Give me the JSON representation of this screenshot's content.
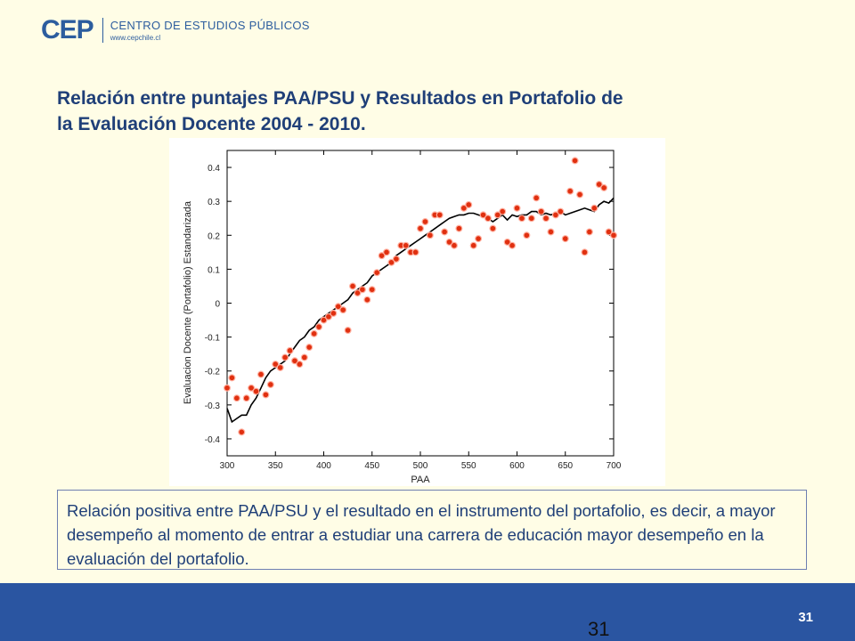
{
  "header": {
    "logo_mark": "CEP",
    "org_name": "CENTRO DE ESTUDIOS PÚBLICOS",
    "org_url": "www.cepchile.cl",
    "brand_color": "#2c5d9e"
  },
  "slide": {
    "title_line1": "Relación entre puntajes PAA/PSU y Resultados en Portafolio de",
    "title_line2": "la Evaluación Docente 2004 - 2010.",
    "summary": "Relación positiva entre PAA/PSU y el resultado en el instrumento del portafolio, es decir, a mayor desempeño al momento de entrar a estudiar una carrera de educación mayor desempeño en la evaluación del portafolio.",
    "title_color": "#1f3f78"
  },
  "footer": {
    "page_number": "31",
    "page_number_center": "31",
    "color": "#2a55a1"
  },
  "chart_data": {
    "type": "scatter",
    "xlabel": "PAA",
    "ylabel": "Evaluacion Docente (Portafolio) Estandarizada",
    "xlim": [
      300,
      700
    ],
    "ylim": [
      -0.45,
      0.45
    ],
    "xticks": [
      300,
      350,
      400,
      450,
      500,
      550,
      600,
      650,
      700
    ],
    "yticks": [
      0.4,
      0.3,
      0.2,
      0.1,
      0,
      -0.1,
      -0.2,
      -0.3,
      -0.4
    ],
    "ytick_labels": [
      "0.4",
      "0.3",
      "0.2",
      "0.1",
      "0",
      "-0.1",
      "-0.2",
      "-0.3",
      "-0.4"
    ],
    "marker_color": "#e03010",
    "line_color": "#000000",
    "series": [
      {
        "kind": "points",
        "x": [
          300,
          305,
          310,
          315,
          320,
          325,
          330,
          335,
          340,
          345,
          350,
          355,
          360,
          365,
          370,
          375,
          380,
          385,
          390,
          395,
          400,
          405,
          410,
          415,
          420,
          425,
          430,
          435,
          440,
          445,
          450,
          455,
          460,
          465,
          470,
          475,
          480,
          485,
          490,
          495,
          500,
          505,
          510,
          515,
          520,
          525,
          530,
          535,
          540,
          545,
          550,
          555,
          560,
          565,
          570,
          575,
          580,
          585,
          590,
          595,
          600,
          605,
          610,
          615,
          620,
          625,
          630,
          635,
          640,
          645,
          650,
          655,
          660,
          665,
          670,
          675,
          680,
          685,
          690,
          695,
          700
        ],
        "y": [
          -0.25,
          -0.22,
          -0.28,
          -0.38,
          -0.28,
          -0.25,
          -0.26,
          -0.21,
          -0.27,
          -0.24,
          -0.18,
          -0.19,
          -0.16,
          -0.14,
          -0.17,
          -0.18,
          -0.16,
          -0.13,
          -0.09,
          -0.07,
          -0.05,
          -0.04,
          -0.03,
          -0.01,
          -0.02,
          -0.08,
          0.05,
          0.03,
          0.04,
          0.01,
          0.04,
          0.09,
          0.14,
          0.15,
          0.12,
          0.13,
          0.17,
          0.17,
          0.15,
          0.15,
          0.22,
          0.24,
          0.2,
          0.26,
          0.26,
          0.21,
          0.18,
          0.17,
          0.22,
          0.28,
          0.29,
          0.17,
          0.19,
          0.26,
          0.25,
          0.22,
          0.26,
          0.27,
          0.18,
          0.17,
          0.28,
          0.25,
          0.2,
          0.25,
          0.31,
          0.27,
          0.25,
          0.21,
          0.26,
          0.27,
          0.19,
          0.33,
          0.42,
          0.32,
          0.15,
          0.21,
          0.28,
          0.35,
          0.34,
          0.21,
          0.2
        ]
      },
      {
        "kind": "line",
        "x": [
          300,
          305,
          310,
          315,
          320,
          325,
          330,
          335,
          340,
          345,
          350,
          355,
          360,
          365,
          370,
          375,
          380,
          385,
          390,
          395,
          400,
          405,
          410,
          415,
          420,
          425,
          430,
          435,
          440,
          445,
          450,
          455,
          460,
          465,
          470,
          475,
          480,
          485,
          490,
          495,
          500,
          505,
          510,
          515,
          520,
          525,
          530,
          535,
          540,
          545,
          550,
          555,
          560,
          565,
          570,
          575,
          580,
          585,
          590,
          595,
          600,
          605,
          610,
          615,
          620,
          625,
          630,
          635,
          640,
          645,
          650,
          655,
          660,
          665,
          670,
          675,
          680,
          685,
          690,
          695,
          700
        ],
        "y": [
          -0.31,
          -0.35,
          -0.34,
          -0.33,
          -0.33,
          -0.3,
          -0.28,
          -0.25,
          -0.22,
          -0.2,
          -0.19,
          -0.18,
          -0.17,
          -0.15,
          -0.13,
          -0.11,
          -0.1,
          -0.08,
          -0.07,
          -0.05,
          -0.04,
          -0.03,
          -0.02,
          -0.01,
          0.0,
          0.01,
          0.03,
          0.04,
          0.05,
          0.06,
          0.08,
          0.09,
          0.1,
          0.11,
          0.12,
          0.14,
          0.15,
          0.16,
          0.17,
          0.18,
          0.19,
          0.2,
          0.21,
          0.22,
          0.23,
          0.24,
          0.25,
          0.255,
          0.26,
          0.26,
          0.265,
          0.265,
          0.26,
          0.255,
          0.25,
          0.24,
          0.25,
          0.26,
          0.245,
          0.26,
          0.255,
          0.26,
          0.26,
          0.27,
          0.27,
          0.26,
          0.265,
          0.26,
          0.265,
          0.27,
          0.26,
          0.265,
          0.27,
          0.275,
          0.28,
          0.275,
          0.27,
          0.29,
          0.3,
          0.295,
          0.31
        ]
      }
    ]
  }
}
